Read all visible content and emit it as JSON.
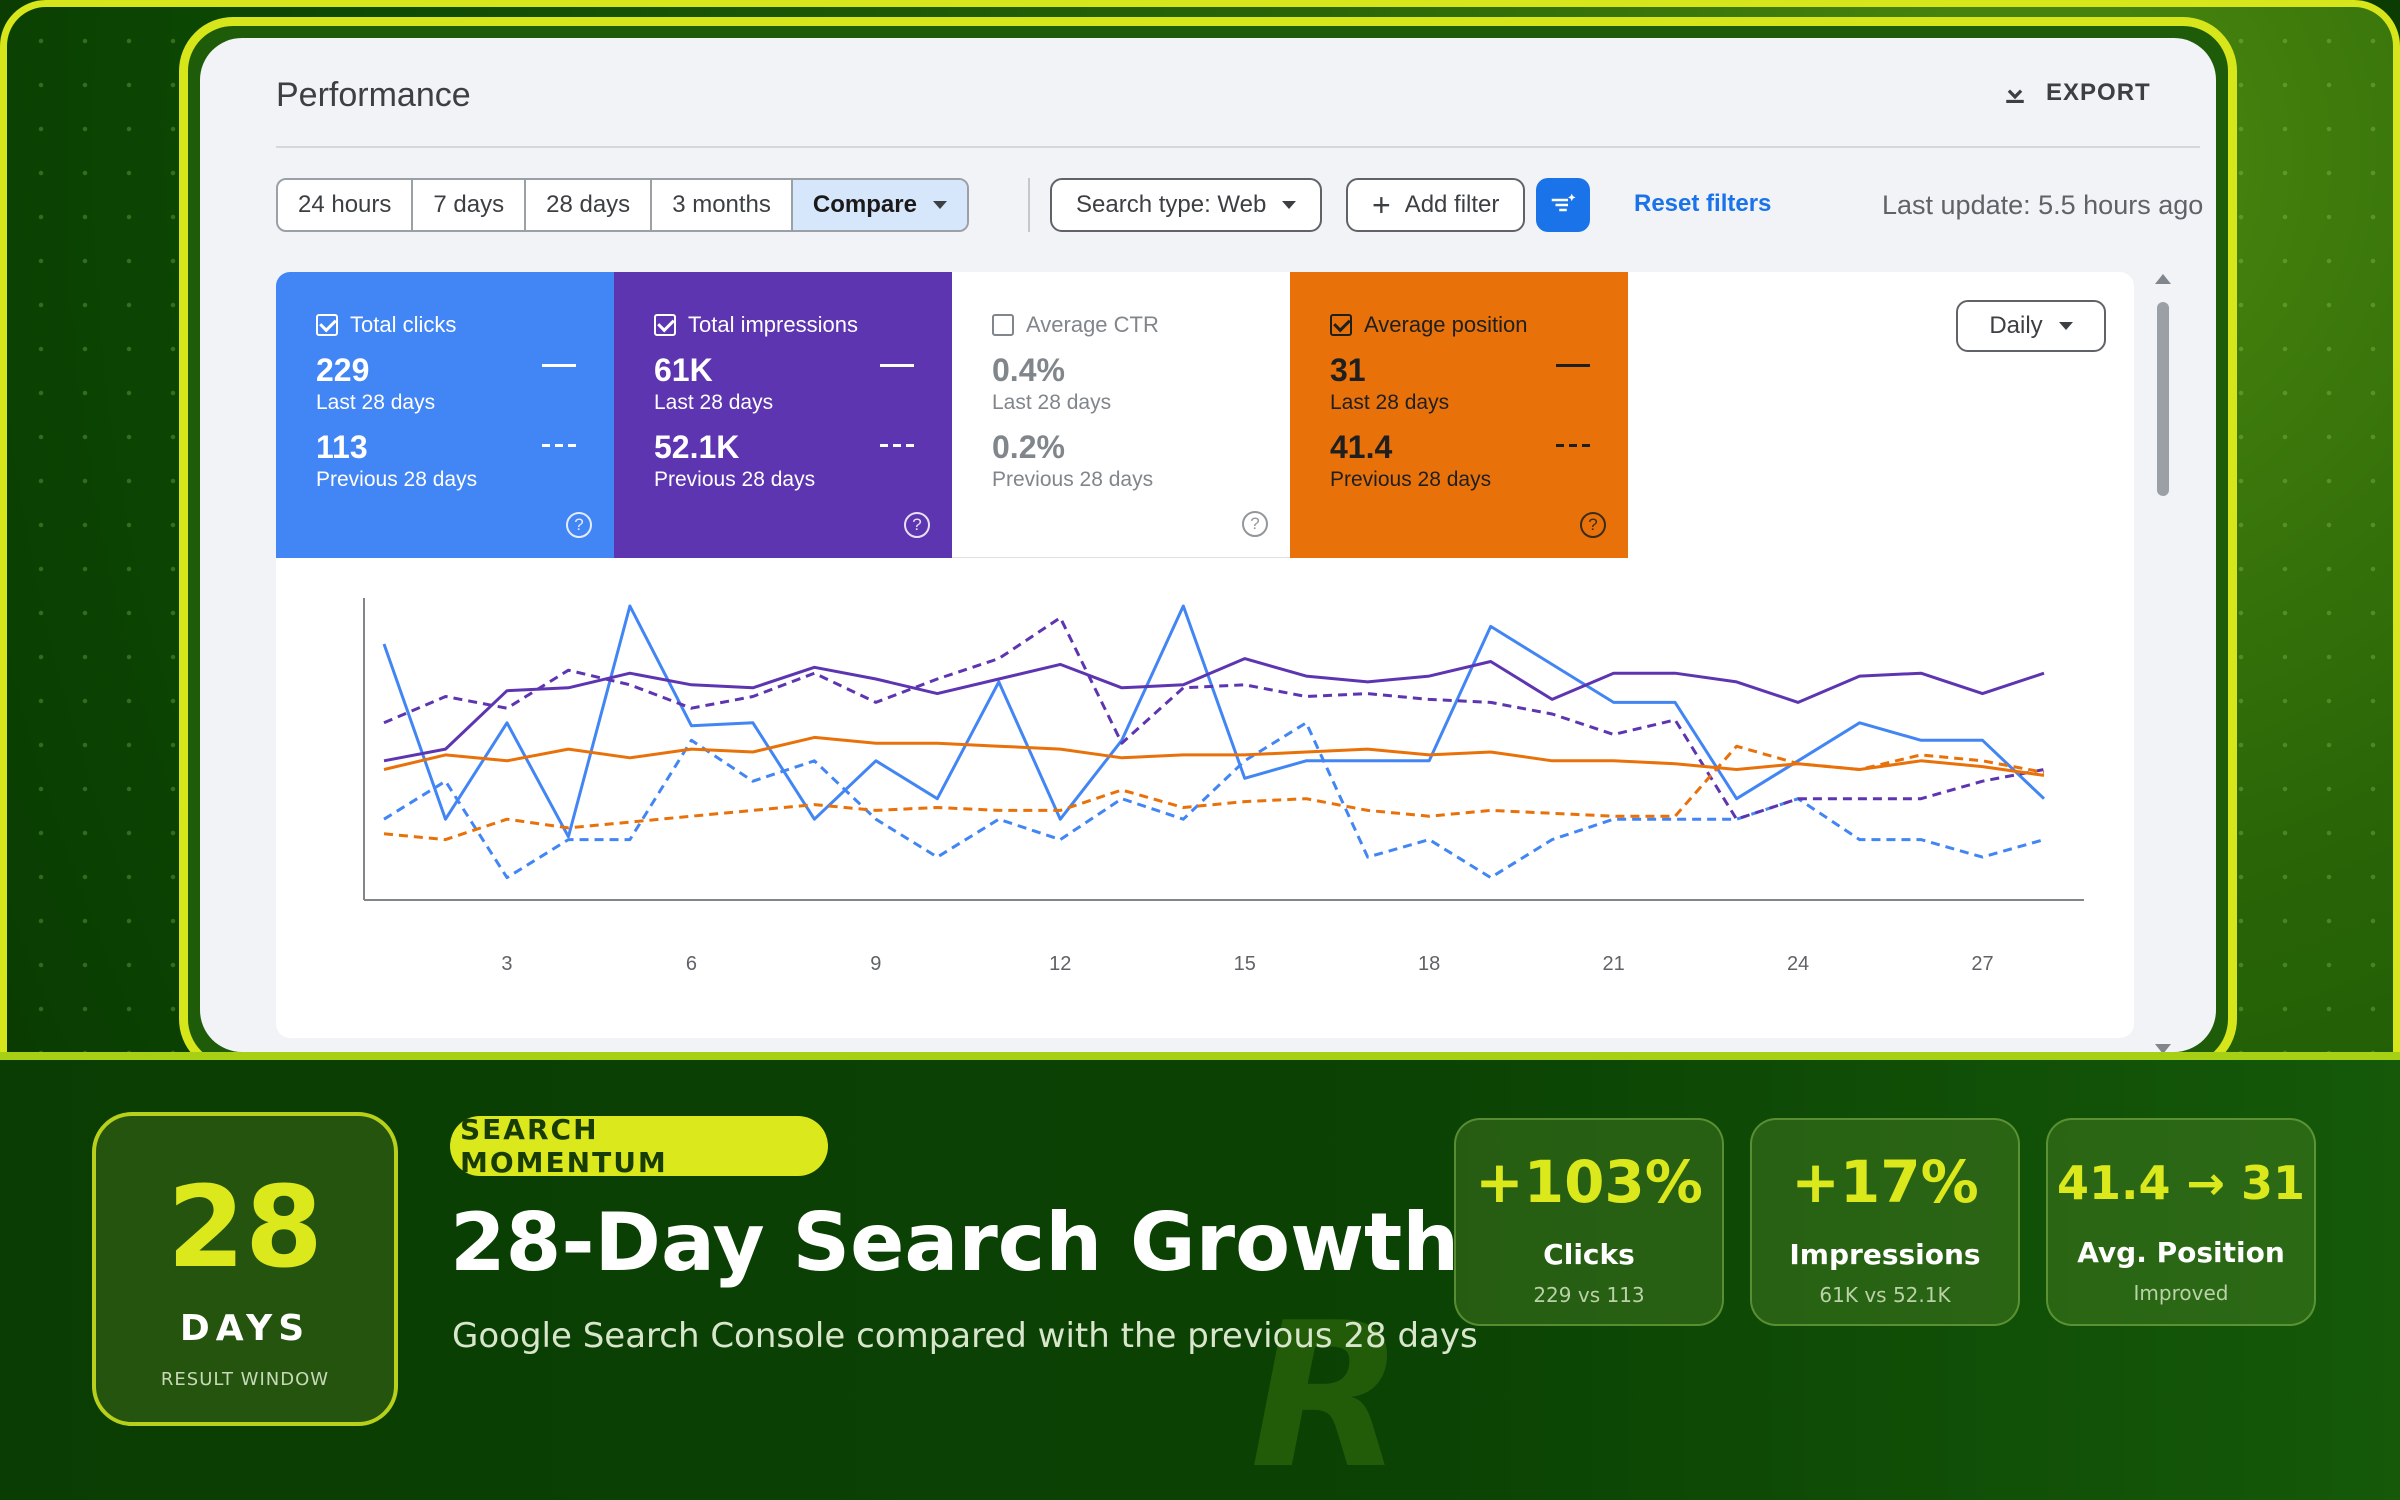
{
  "header": {
    "title": "Performance",
    "export_label": "EXPORT"
  },
  "toolbar": {
    "ranges": [
      "24 hours",
      "7 days",
      "28 days",
      "3 months"
    ],
    "compare_label": "Compare",
    "search_type_label": "Search type: Web",
    "add_filter_label": "Add filter",
    "reset_filters_label": "Reset filters",
    "last_update": "Last update: 5.5 hours ago"
  },
  "metrics": [
    {
      "label": "Total clicks",
      "checked": true,
      "current": "229",
      "current_label": "Last 28 days",
      "previous": "113",
      "previous_label": "Previous 28 days"
    },
    {
      "label": "Total impressions",
      "checked": true,
      "current": "61K",
      "current_label": "Last 28 days",
      "previous": "52.1K",
      "previous_label": "Previous 28 days"
    },
    {
      "label": "Average CTR",
      "checked": false,
      "current": "0.4%",
      "current_label": "Last 28 days",
      "previous": "0.2%",
      "previous_label": "Previous 28 days"
    },
    {
      "label": "Average position",
      "checked": true,
      "current": "31",
      "current_label": "Last 28 days",
      "previous": "41.4",
      "previous_label": "Previous 28 days"
    }
  ],
  "granularity": "Daily",
  "colors": {
    "clicks": "#4285f4",
    "impressions": "#5e35b1",
    "position": "#e8710a",
    "accent": "#dbe81c"
  },
  "chart_data": {
    "type": "line",
    "x": [
      1,
      2,
      3,
      4,
      5,
      6,
      7,
      8,
      9,
      10,
      11,
      12,
      13,
      14,
      15,
      16,
      17,
      18,
      19,
      20,
      21,
      22,
      23,
      24,
      25,
      26,
      27,
      28
    ],
    "xticks": [
      "3",
      "6",
      "9",
      "12",
      "15",
      "18",
      "21",
      "24",
      "27"
    ],
    "series": [
      {
        "metric": "clicks",
        "period": "current",
        "style": "solid",
        "values": [
          0.87,
          0.27,
          0.6,
          0.21,
          1.0,
          0.59,
          0.6,
          0.27,
          0.47,
          0.34,
          0.74,
          0.27,
          0.54,
          1.0,
          0.41,
          0.47,
          0.47,
          0.47,
          0.93,
          0.8,
          0.67,
          0.67,
          0.34,
          0.47,
          0.6,
          0.54,
          0.54,
          0.34
        ]
      },
      {
        "metric": "clicks",
        "period": "previous",
        "style": "dashed",
        "values": [
          0.27,
          0.4,
          0.07,
          0.2,
          0.2,
          0.54,
          0.4,
          0.47,
          0.27,
          0.14,
          0.27,
          0.2,
          0.34,
          0.27,
          0.47,
          0.6,
          0.14,
          0.2,
          0.07,
          0.2,
          0.27,
          0.27,
          0.27,
          0.34,
          0.2,
          0.2,
          0.14,
          0.2
        ]
      },
      {
        "metric": "impressions",
        "period": "current",
        "style": "solid",
        "values": [
          0.47,
          0.51,
          0.71,
          0.72,
          0.77,
          0.73,
          0.72,
          0.79,
          0.75,
          0.7,
          0.75,
          0.8,
          0.72,
          0.73,
          0.82,
          0.76,
          0.74,
          0.76,
          0.81,
          0.68,
          0.77,
          0.77,
          0.74,
          0.67,
          0.76,
          0.77,
          0.7,
          0.77
        ]
      },
      {
        "metric": "impressions",
        "period": "previous",
        "style": "dashed",
        "values": [
          0.6,
          0.69,
          0.65,
          0.78,
          0.73,
          0.65,
          0.69,
          0.77,
          0.67,
          0.75,
          0.82,
          0.96,
          0.53,
          0.72,
          0.73,
          0.69,
          0.7,
          0.68,
          0.67,
          0.63,
          0.56,
          0.61,
          0.27,
          0.34,
          0.34,
          0.34,
          0.4,
          0.44
        ]
      },
      {
        "metric": "position",
        "period": "current",
        "style": "solid",
        "values": [
          0.44,
          0.49,
          0.47,
          0.51,
          0.48,
          0.51,
          0.5,
          0.55,
          0.53,
          0.53,
          0.52,
          0.51,
          0.48,
          0.49,
          0.49,
          0.5,
          0.51,
          0.49,
          0.5,
          0.47,
          0.47,
          0.46,
          0.44,
          0.46,
          0.44,
          0.47,
          0.45,
          0.42
        ]
      },
      {
        "metric": "position",
        "period": "previous",
        "style": "dashed",
        "values": [
          0.22,
          0.2,
          0.27,
          0.24,
          0.26,
          0.28,
          0.3,
          0.32,
          0.3,
          0.31,
          0.3,
          0.3,
          0.37,
          0.31,
          0.33,
          0.34,
          0.3,
          0.28,
          0.3,
          0.29,
          0.28,
          0.28,
          0.52,
          0.46,
          0.44,
          0.49,
          0.47,
          0.43
        ]
      }
    ]
  },
  "banner": {
    "days_number": "28",
    "days_label": "DAYS",
    "days_sub": "RESULT WINDOW",
    "tag": "SEARCH MOMENTUM",
    "title": "28-Day Search Growth",
    "subtitle": "Google Search Console compared with the previous 28 days",
    "watermark": "R",
    "stats": [
      {
        "value": "+103%",
        "label": "Clicks",
        "sub": "229 vs 113"
      },
      {
        "value": "+17%",
        "label": "Impressions",
        "sub": "61K vs 52.1K"
      },
      {
        "value": "41.4 → 31",
        "label": "Avg. Position",
        "sub": "Improved"
      }
    ]
  }
}
